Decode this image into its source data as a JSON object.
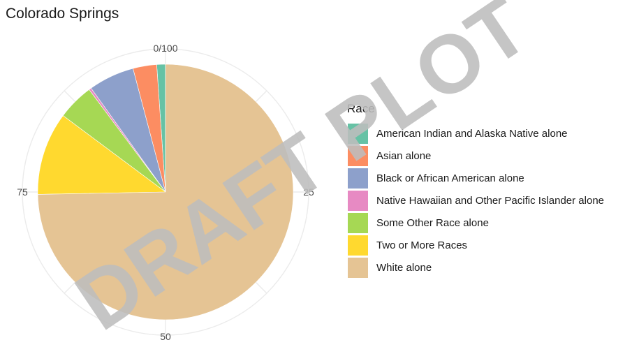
{
  "chart_data": {
    "type": "pie",
    "title": "Colorado Springs",
    "legend_title": "Race",
    "legend_position": "right",
    "axis_ticks": [
      "0/100",
      "25",
      "50",
      "75"
    ],
    "grid": true,
    "watermark": "DRAFT PLOT",
    "slices": [
      {
        "label": "American Indian and Alaska Native alone",
        "value": 1.1,
        "color": "#66C2A5"
      },
      {
        "label": "Asian alone",
        "value": 3.0,
        "color": "#FC8D62"
      },
      {
        "label": "Black or African American alone",
        "value": 5.8,
        "color": "#8DA0CB"
      },
      {
        "label": "Native Hawaiian and Other Pacific Islander alone",
        "value": 0.3,
        "color": "#E78AC3"
      },
      {
        "label": "Some Other Race alone",
        "value": 4.6,
        "color": "#A6D854"
      },
      {
        "label": "Two or More Races",
        "value": 10.5,
        "color": "#FFD92F"
      },
      {
        "label": "White alone",
        "value": 74.7,
        "color": "#E5C494"
      }
    ]
  }
}
